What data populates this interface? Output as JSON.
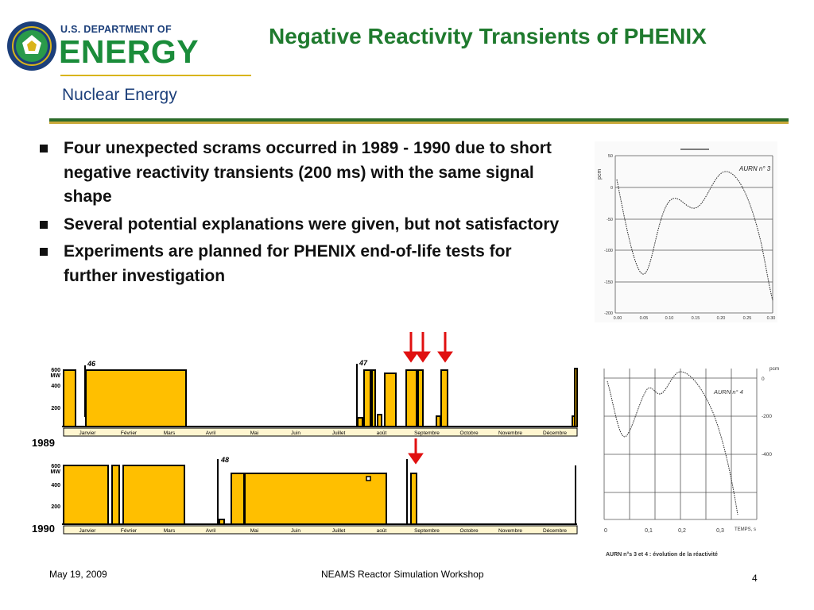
{
  "logo": {
    "dept": "U.S. DEPARTMENT OF",
    "energy": "ENERGY",
    "subtitle": "Nuclear Energy"
  },
  "slide": {
    "title": "Negative Reactivity Transients of PHENIX",
    "bullets": [
      "Four unexpected scrams occurred in 1989 - 1990 due to short negative reactivity transients (200 ms) with the same signal shape",
      "Several potential explanations were given, but not satisfactory",
      "Experiments are planned for PHENIX end-of-life tests for further investigation"
    ]
  },
  "power_charts": {
    "months": [
      "Janvier",
      "Février",
      "Mars",
      "Avril",
      "Mai",
      "Juin",
      "Juillet",
      "août",
      "Septembre",
      "Octobre",
      "Novembre",
      "Décembre"
    ],
    "y_ticks": [
      "200",
      "400",
      "600"
    ],
    "y_unit": "MW",
    "bar_color": "#ffbf00",
    "arrow_color": "#e01010",
    "chart_1989": {
      "year": "1989",
      "scram_labels": [
        "46",
        "47"
      ],
      "scram_arrows_month": [
        "Septembre",
        "Septembre",
        "Septembre"
      ]
    },
    "chart_1990": {
      "year": "1990",
      "scram_labels": [
        "48"
      ],
      "scram_arrows_month": [
        "Septembre"
      ]
    }
  },
  "reactivity_plot_1": {
    "run_label": "AURN n° 3",
    "y_unit": "pcm",
    "y_ticks": [
      "50",
      "0",
      "-50",
      "-100",
      "-150",
      "-200"
    ],
    "x_ticks": [
      "0.00",
      "0.05",
      "0.10",
      "0.15",
      "0.20",
      "0.25",
      "0.30"
    ]
  },
  "reactivity_plot_2": {
    "run_label": "AURN n° 4",
    "y_unit": "pcm",
    "y_ticks": [
      "0",
      "-200",
      "-400"
    ],
    "x_ticks": [
      "0",
      "0,1",
      "0,2",
      "0,3"
    ],
    "x_unit": "TEMPS, s",
    "caption": "AURN n°s 3 et 4 : évolution de la réactivité"
  },
  "footer": {
    "date": "May 19, 2009",
    "center": "NEAMS Reactor Simulation Workshop",
    "page": "4"
  }
}
